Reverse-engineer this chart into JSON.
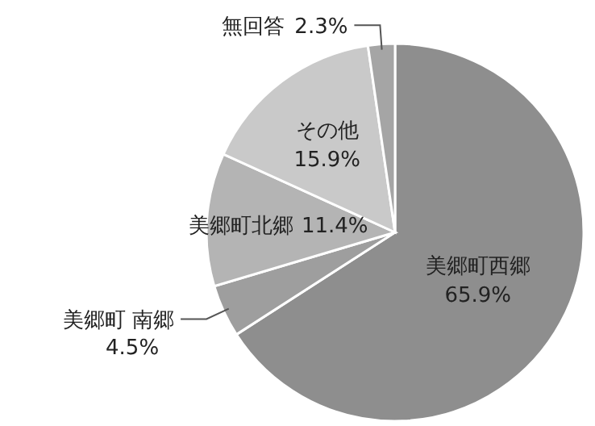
{
  "chart_data": {
    "type": "pie",
    "categories": [
      "美郷町西郷",
      "美郷町 南郷",
      "美郷町北郷",
      "その他",
      "無回答"
    ],
    "values": [
      65.9,
      4.5,
      11.4,
      15.9,
      2.3
    ],
    "value_labels": [
      "65.9%",
      "4.5%",
      "11.4%",
      "15.9%",
      "2.3%"
    ],
    "colors": [
      "#8e8e8e",
      "#9e9e9e",
      "#b4b4b4",
      "#c9c9c9",
      "#a5a5a5"
    ]
  }
}
